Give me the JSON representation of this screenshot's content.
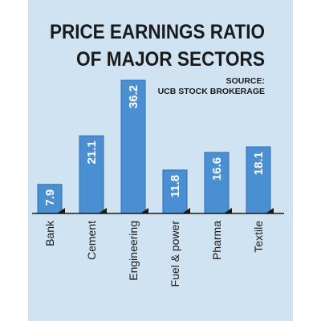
{
  "chart_data": {
    "type": "bar",
    "title_lines": [
      "PRICE EARNINGS RATIO",
      "OF MAJOR SECTORS"
    ],
    "source_lines": [
      "SOURCE:",
      "UCB STOCK BROKERAGE"
    ],
    "categories": [
      "Bank",
      "Cement",
      "Engineering",
      "Fuel & power",
      "Pharma",
      "Textile"
    ],
    "values": [
      7.9,
      21.1,
      36.2,
      11.8,
      16.6,
      18.1
    ],
    "value_labels": [
      "7.9",
      "21.1",
      "36.2",
      "11.8",
      "16.6",
      "18.1"
    ],
    "ylim": [
      0,
      36.2
    ],
    "grid": false,
    "legend": "none",
    "colors": {
      "panel": "#cfe3f3",
      "bar": "#4a8fd1",
      "bar_edge": "#2f6fb0",
      "axis": "#1a1a1a",
      "value_text": "#ffffff"
    }
  }
}
